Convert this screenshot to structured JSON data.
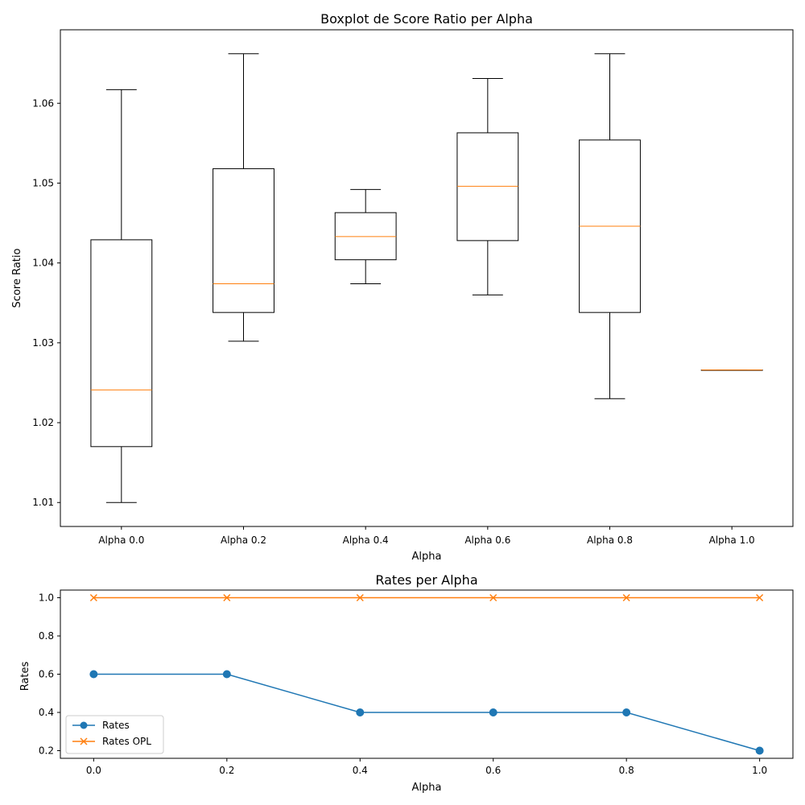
{
  "chart_data": [
    {
      "type": "boxplot",
      "title": "Boxplot de Score Ratio per Alpha",
      "xlabel": "Alpha",
      "ylabel": "Score Ratio",
      "ylim": [
        1.007,
        1.0692
      ],
      "yticks": [
        1.01,
        1.02,
        1.03,
        1.04,
        1.05,
        1.06
      ],
      "ytick_labels": [
        "1.01",
        "1.02",
        "1.03",
        "1.04",
        "1.05",
        "1.06"
      ],
      "categories": [
        "Alpha 0.0",
        "Alpha 0.2",
        "Alpha 0.4",
        "Alpha 0.6",
        "Alpha 0.8",
        "Alpha 1.0"
      ],
      "boxes": [
        {
          "whisker_low": 1.01,
          "q1": 1.017,
          "median": 1.0241,
          "q3": 1.0429,
          "whisker_high": 1.0617
        },
        {
          "whisker_low": 1.0302,
          "q1": 1.0338,
          "median": 1.0374,
          "q3": 1.0518,
          "whisker_high": 1.0662
        },
        {
          "whisker_low": 1.0374,
          "q1": 1.0404,
          "median": 1.0433,
          "q3": 1.0463,
          "whisker_high": 1.0492
        },
        {
          "whisker_low": 1.036,
          "q1": 1.0428,
          "median": 1.0496,
          "q3": 1.0563,
          "whisker_high": 1.0631
        },
        {
          "whisker_low": 1.023,
          "q1": 1.0338,
          "median": 1.0446,
          "q3": 1.0554,
          "whisker_high": 1.0662
        },
        {
          "whisker_low": 1.0266,
          "q1": 1.0266,
          "median": 1.0266,
          "q3": 1.0266,
          "whisker_high": 1.0266
        }
      ],
      "colors": {
        "box": "#000000",
        "median": "#ff7f0e"
      }
    },
    {
      "type": "line",
      "title": "Rates per Alpha",
      "xlabel": "Alpha",
      "ylabel": "Rates",
      "xlim": [
        -0.05,
        1.05
      ],
      "ylim": [
        0.16,
        1.04
      ],
      "x": [
        0.0,
        0.2,
        0.4,
        0.6,
        0.8,
        1.0
      ],
      "xticks": [
        0.0,
        0.2,
        0.4,
        0.6,
        0.8,
        1.0
      ],
      "xtick_labels": [
        "0.0",
        "0.2",
        "0.4",
        "0.6",
        "0.8",
        "1.0"
      ],
      "yticks": [
        0.2,
        0.4,
        0.6,
        0.8,
        1.0
      ],
      "ytick_labels": [
        "0.2",
        "0.4",
        "0.6",
        "0.8",
        "1.0"
      ],
      "legend_position": "lower-left",
      "series": [
        {
          "name": "Rates",
          "values": [
            0.6,
            0.6,
            0.4,
            0.4,
            0.4,
            0.2
          ],
          "color": "#1f77b4",
          "marker": "circle"
        },
        {
          "name": "Rates OPL",
          "values": [
            1.0,
            1.0,
            1.0,
            1.0,
            1.0,
            1.0
          ],
          "color": "#ff7f0e",
          "marker": "x"
        }
      ]
    }
  ]
}
